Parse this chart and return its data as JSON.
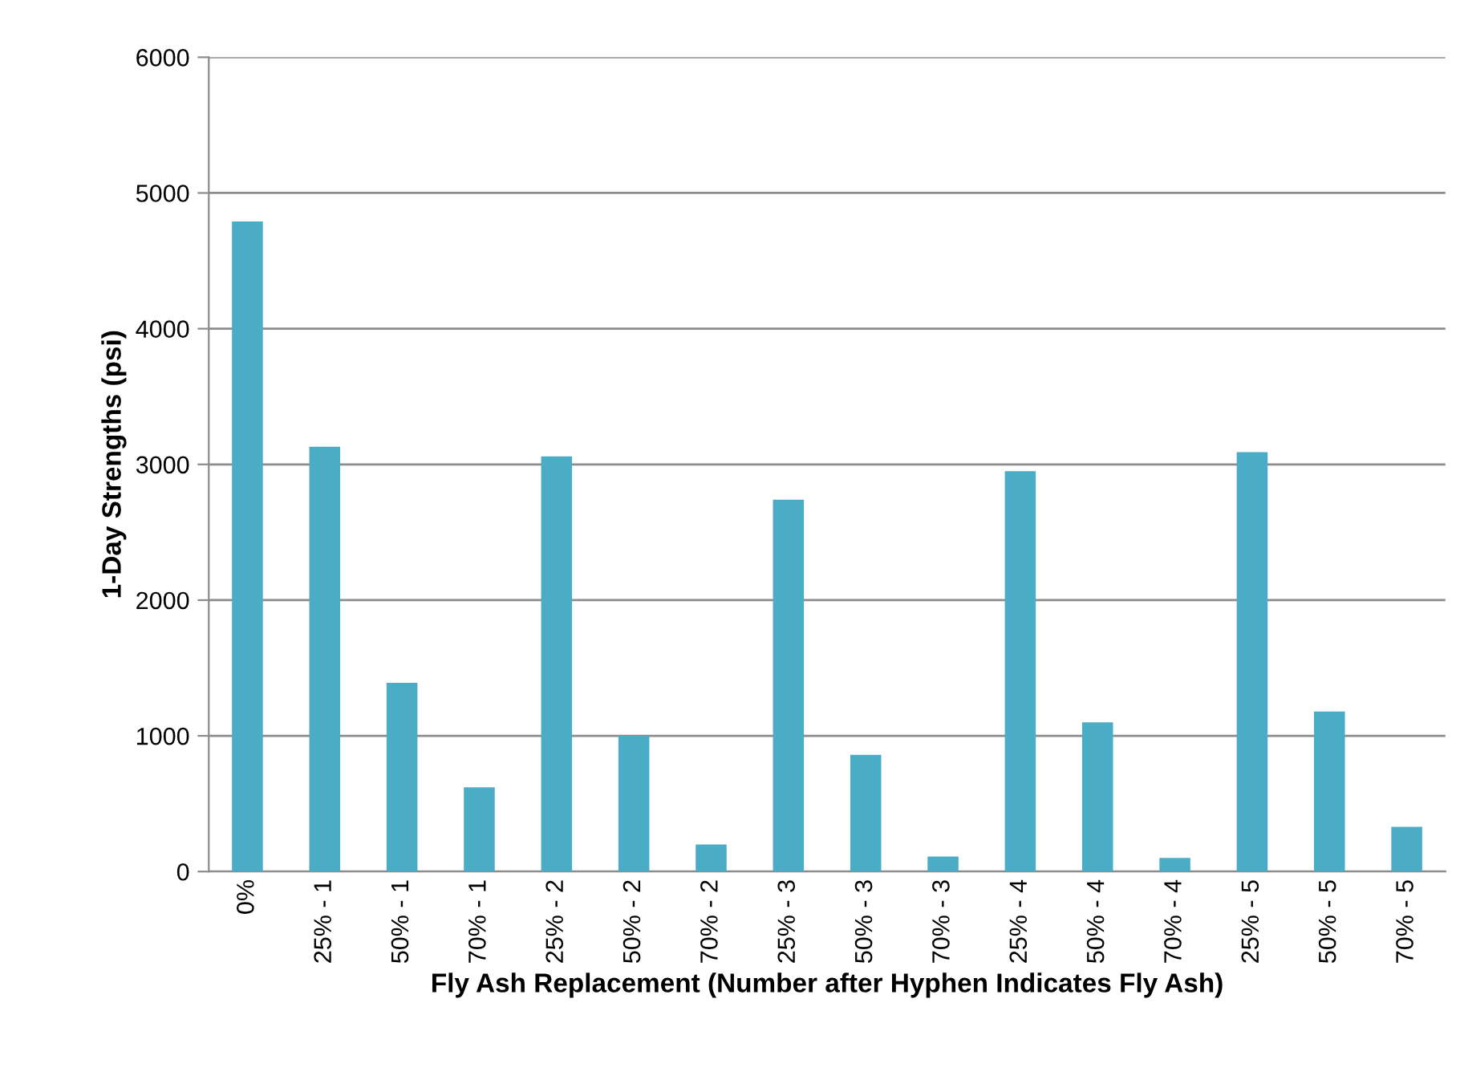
{
  "chart_data": {
    "type": "bar",
    "xlabel": "Fly Ash Replacement (Number after Hyphen Indicates Fly Ash)",
    "ylabel": "1-Day Strengths (psi)",
    "categories": [
      "0%",
      "25% - 1",
      "50% - 1",
      "70% - 1",
      "25% - 2",
      "50% - 2",
      "70% - 2",
      "25% - 3",
      "50% - 3",
      "70% - 3",
      "25% - 4",
      "50% - 4",
      "70% - 4",
      "25% - 5",
      "50% - 5",
      "70% - 5"
    ],
    "values": [
      4790,
      3130,
      1390,
      620,
      3060,
      1000,
      200,
      2740,
      860,
      110,
      2950,
      1100,
      100,
      3090,
      1180,
      330
    ],
    "color": "#4bacc6",
    "ylim": [
      0,
      6000
    ],
    "yticks": [
      0,
      1000,
      2000,
      3000,
      4000,
      5000,
      6000
    ],
    "grid": "y"
  }
}
